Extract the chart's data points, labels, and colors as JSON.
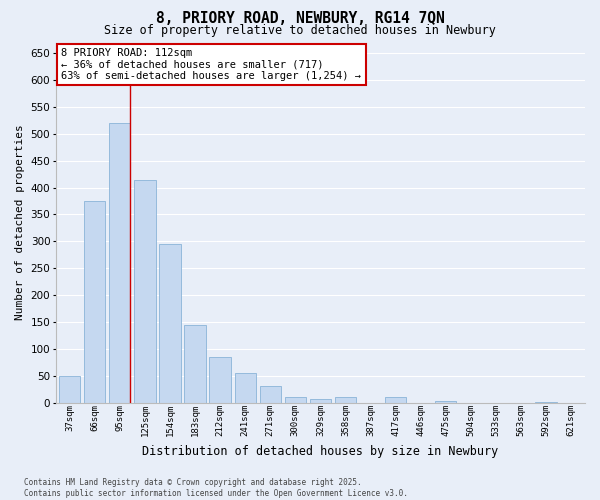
{
  "title1": "8, PRIORY ROAD, NEWBURY, RG14 7QN",
  "title2": "Size of property relative to detached houses in Newbury",
  "xlabel": "Distribution of detached houses by size in Newbury",
  "ylabel": "Number of detached properties",
  "categories": [
    "37sqm",
    "66sqm",
    "95sqm",
    "125sqm",
    "154sqm",
    "183sqm",
    "212sqm",
    "241sqm",
    "271sqm",
    "300sqm",
    "329sqm",
    "358sqm",
    "387sqm",
    "417sqm",
    "446sqm",
    "475sqm",
    "504sqm",
    "533sqm",
    "563sqm",
    "592sqm",
    "621sqm"
  ],
  "values": [
    50,
    375,
    520,
    415,
    295,
    145,
    85,
    55,
    30,
    10,
    7,
    10,
    0,
    10,
    0,
    2,
    0,
    0,
    0,
    1,
    0
  ],
  "bar_color": "#c5d8f0",
  "bar_edge_color": "#8ab4d8",
  "background_color": "#e8eef8",
  "plot_bg_color": "#e8eef8",
  "grid_color": "#ffffff",
  "vline_color": "#cc0000",
  "annotation_text": "8 PRIORY ROAD: 112sqm\n← 36% of detached houses are smaller (717)\n63% of semi-detached houses are larger (1,254) →",
  "annotation_box_facecolor": "#ffffff",
  "annotation_box_edgecolor": "#cc0000",
  "ylim": [
    0,
    670
  ],
  "yticks": [
    0,
    50,
    100,
    150,
    200,
    250,
    300,
    350,
    400,
    450,
    500,
    550,
    600,
    650
  ],
  "footer_line1": "Contains HM Land Registry data © Crown copyright and database right 2025.",
  "footer_line2": "Contains public sector information licensed under the Open Government Licence v3.0."
}
